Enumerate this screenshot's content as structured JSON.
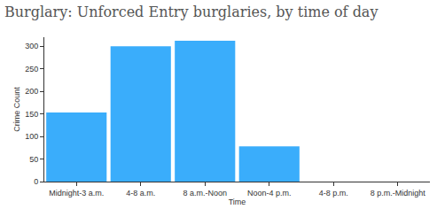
{
  "chart_data": {
    "type": "bar",
    "title": "Burglary: Unforced Entry burglaries, by time of day",
    "x_label": "Time",
    "y_label": "Crime Count",
    "categories": [
      "Midnight-3 a.m.",
      "4-8 a.m.",
      "8 a.m.-Noon",
      "Noon-4 p.m.",
      "4-8 p.m.",
      "8 p.m.-Midnight"
    ],
    "values": [
      153,
      300,
      312,
      78,
      0,
      0
    ],
    "color": "#3aadfb",
    "ylim": [
      0,
      320
    ],
    "yticks": [
      0,
      50,
      100,
      150,
      200,
      250,
      300
    ],
    "grid": false
  }
}
